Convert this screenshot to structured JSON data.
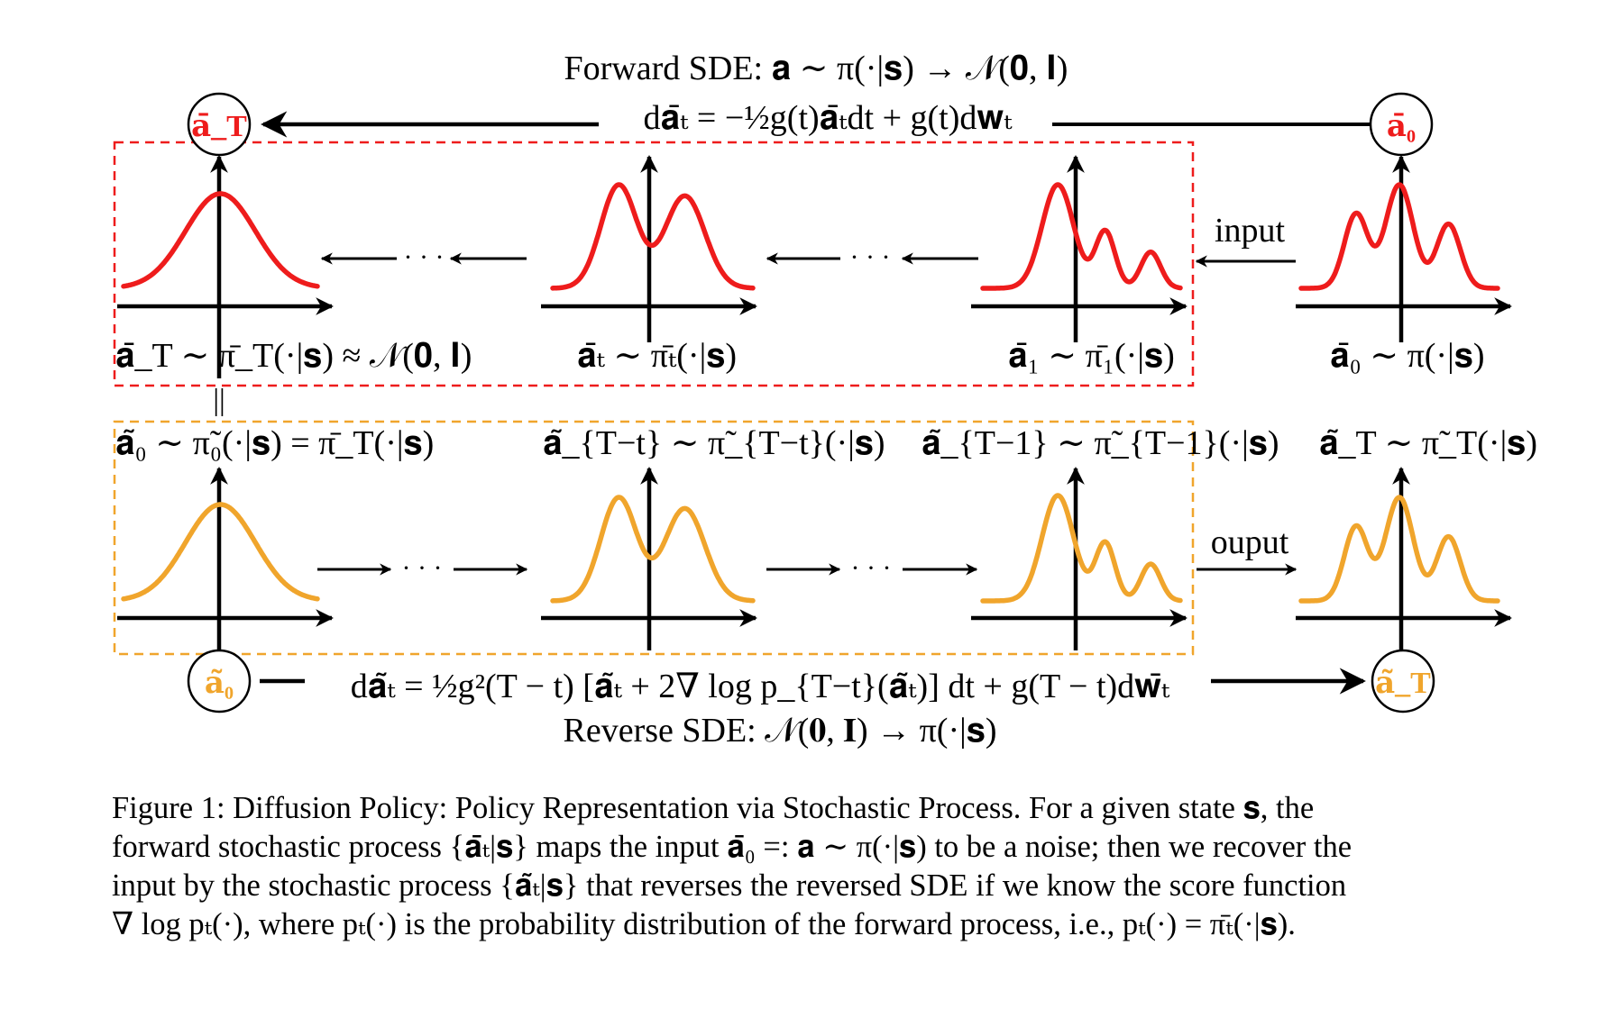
{
  "colors": {
    "forward": "#ee1c1c",
    "reverse": "#f0a52c",
    "ink": "#000000"
  },
  "forward_title": "Forward SDE: 𝐚 ∼ π(·|𝐬) → 𝒩(𝟎, 𝐈)",
  "forward_equation": "d𝐚̄ₜ = −½g(t)𝐚̄ₜdt + g(t)d𝐰ₜ",
  "reverse_equation": "d𝐚̃ₜ = ½g²(T − t) [𝐚̃ₜ + 2∇ log p_{T−t}(𝐚̃ₜ)] dt + g(T − t)d𝐰̄ₜ",
  "reverse_title": "Reverse SDE: 𝒩(𝟎, 𝐈) → π(·|𝐬)",
  "nodes": {
    "forward_end": "𝐚̄_T",
    "forward_start": "𝐚̄₀",
    "reverse_start": "𝐚̃₀",
    "reverse_end": "𝐚̃_T"
  },
  "forward_labels": [
    "𝐚̄_T ∼ π̄_T(·|𝐬) ≈ 𝒩(𝟎, 𝐈)",
    "𝐚̄ₜ ∼ π̄ₜ(·|𝐬)",
    "𝐚̄₁ ∼ π̄₁(·|𝐬)",
    "𝐚̄₀ ∼ π(·|𝐬)"
  ],
  "equal_sign": "||",
  "reverse_labels": [
    "𝐚̃₀ ∼ π̃₀(·|𝐬) = π̄_T(·|𝐬)",
    "𝐚̃_{T−t} ∼ π̃_{T−t}(·|𝐬)",
    "𝐚̃_{T−1} ∼ π̃_{T−1}(·|𝐬)",
    "𝐚̃_T ∼ π̃_T(·|𝐬)"
  ],
  "dots": "· · ·",
  "input_label": "input",
  "output_label": "ouput",
  "caption": {
    "line1": "Figure 1: Diffusion Policy: Policy Representation via Stochastic Process. For a given state 𝐬, the",
    "line2": "forward stochastic process {𝐚̄ₜ|𝐬} maps the input 𝐚̄₀ =: 𝐚 ∼ π(·|𝐬) to be a noise; then we recover the",
    "line3": "input by the stochastic process {𝐚̃ₜ|𝐬} that reverses the reversed SDE if we know the score function",
    "line4": "∇ log pₜ(·), where pₜ(·) is the probability distribution of the forward process, i.e., pₜ(·) = π̄ₜ(·|𝐬)."
  }
}
